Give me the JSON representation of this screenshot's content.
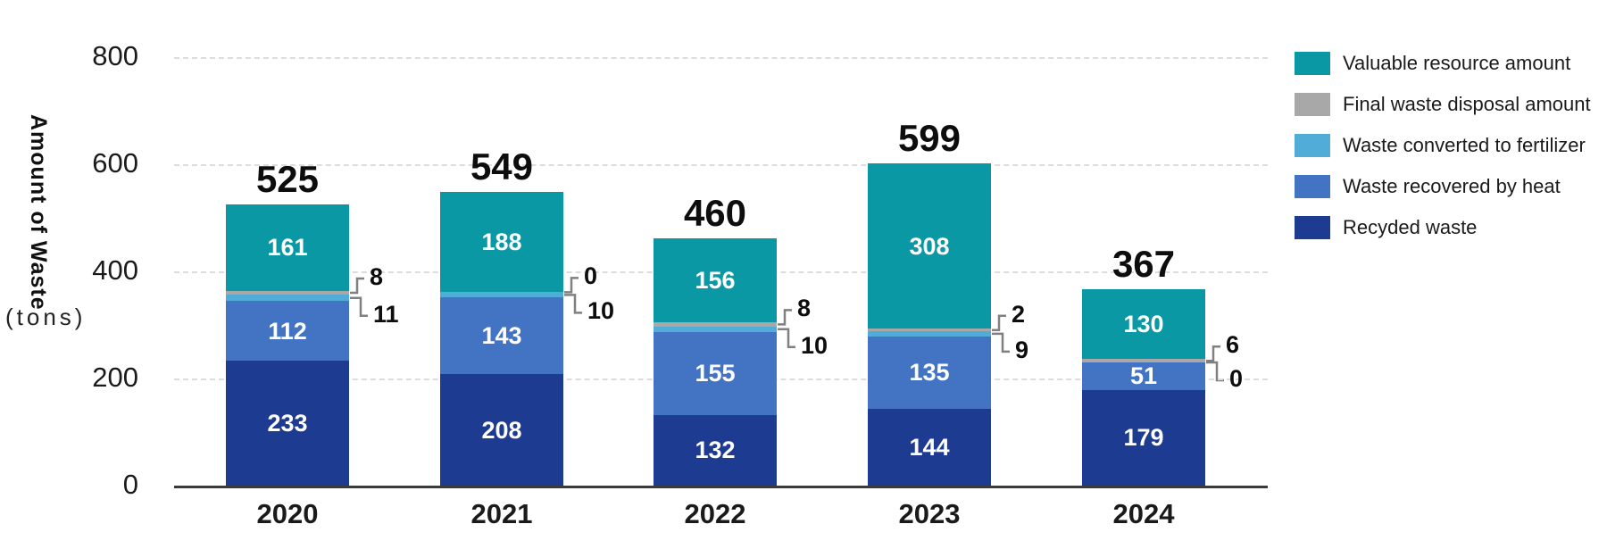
{
  "colors": {
    "recycled": "#1E3B92",
    "heat": "#4374C4",
    "fertilizer": "#51ACD8",
    "final": "#A8A8A8",
    "valuable": "#0A98A5",
    "grid": "#dcdcdc",
    "axis": "#3a3a3a",
    "leader_line": "#808080"
  },
  "y_axis": {
    "title": "Amount of Waste",
    "unit": "(tons)",
    "ticks": [
      0,
      200,
      400,
      600,
      800
    ]
  },
  "legend": {
    "items": [
      {
        "label": "Valuable resource amount",
        "color_key": "valuable"
      },
      {
        "label": "Final waste disposal amount",
        "color_key": "final"
      },
      {
        "label": "Waste converted to fertilizer",
        "color_key": "fertilizer"
      },
      {
        "label": "Waste recovered by heat",
        "color_key": "heat"
      },
      {
        "label": "Recyded waste",
        "color_key": "recycled"
      }
    ]
  },
  "chart_data": {
    "type": "bar",
    "stacked": true,
    "title": "",
    "xlabel": "",
    "ylabel": "Amount of Waste (tons)",
    "ylim": [
      0,
      800
    ],
    "grid": "dashed-horizontal",
    "legend_position": "right",
    "categories": [
      "2020",
      "2021",
      "2022",
      "2023",
      "2024"
    ],
    "series": [
      {
        "name": "Recyded waste",
        "color_key": "recycled",
        "values": [
          233,
          208,
          132,
          144,
          179
        ]
      },
      {
        "name": "Waste recovered by heat",
        "color_key": "heat",
        "values": [
          112,
          143,
          155,
          135,
          51
        ]
      },
      {
        "name": "Waste converted to fertilizer",
        "color_key": "fertilizer",
        "values": [
          11,
          10,
          10,
          9,
          0
        ]
      },
      {
        "name": "Final waste disposal amount",
        "color_key": "final",
        "values": [
          8,
          0,
          8,
          2,
          6
        ]
      },
      {
        "name": "Valuable resource amount",
        "color_key": "valuable",
        "values": [
          161,
          188,
          156,
          308,
          130
        ]
      }
    ],
    "totals": [
      525,
      549,
      460,
      599,
      367
    ],
    "annotation_note": "top callout = Final waste disposal amount, bottom callout = Waste converted to fertilizer"
  }
}
